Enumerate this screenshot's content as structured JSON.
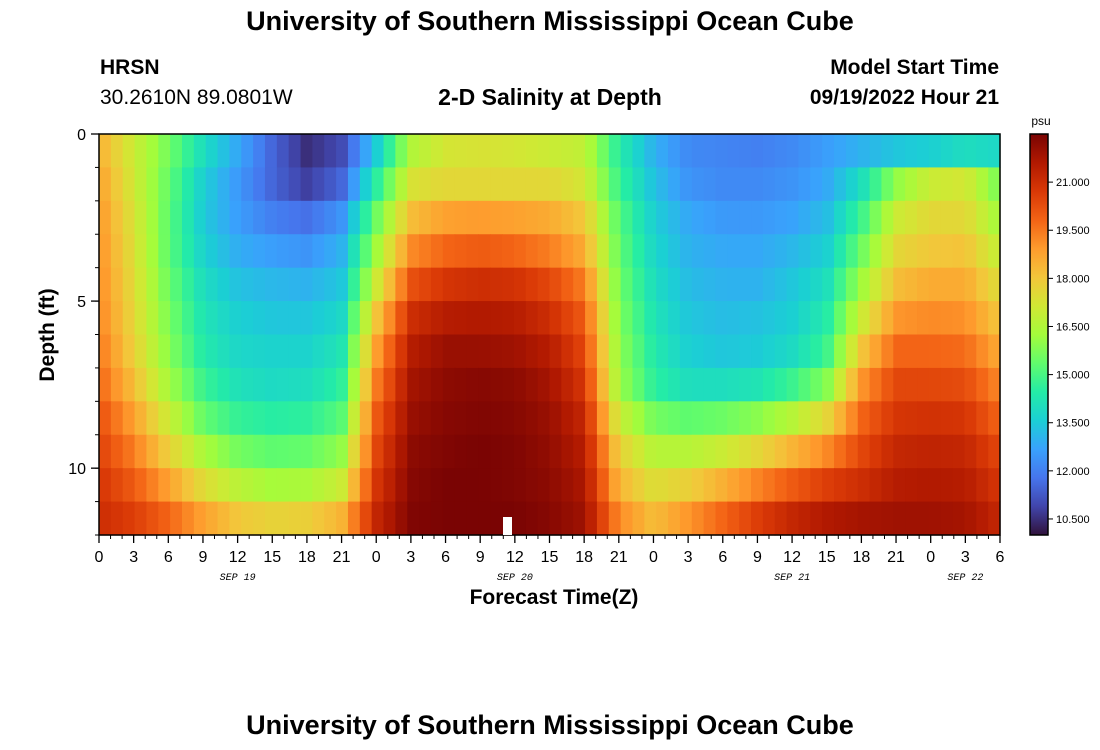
{
  "header": {
    "title": "University of Southern Mississippi Ocean Cube",
    "station": "HRSN",
    "coords": "30.2610N  89.0801W",
    "chart_title": "2-D Salinity at Depth",
    "model_label": "Model Start Time",
    "model_time": "09/19/2022 Hour 21"
  },
  "footer": {
    "title": "University of Southern Mississippi Ocean Cube"
  },
  "colors": {
    "colormap": [
      "#30123b",
      "#4145ab",
      "#4675ed",
      "#39a2fc",
      "#1bcfd4",
      "#24eca6",
      "#61fc6c",
      "#a4fc3b",
      "#d1e834",
      "#f3c63a",
      "#fe9b2d",
      "#f36315",
      "#d93806",
      "#b11901",
      "#7a0403"
    ]
  },
  "chart_data": {
    "type": "heatmap",
    "title": "2-D Salinity at Depth",
    "xlabel": "Forecast Time(Z)",
    "ylabel": "Depth (ft)",
    "colorbar_label": "psu",
    "value_range": [
      10,
      22.5
    ],
    "colorbar_ticks": [
      "10.500",
      "12.000",
      "13.500",
      "15.000",
      "16.500",
      "18.000",
      "19.500",
      "21.000"
    ],
    "colorbar_tick_values": [
      10.5,
      12,
      13.5,
      15,
      16.5,
      18,
      19.5,
      21
    ],
    "x_ticks": [
      "0",
      "3",
      "6",
      "9",
      "12",
      "15",
      "18",
      "21",
      "0",
      "3",
      "6",
      "9",
      "12",
      "15",
      "18",
      "21",
      "0",
      "3",
      "6",
      "9",
      "12",
      "15",
      "18",
      "21",
      "0",
      "3",
      "6"
    ],
    "x_hours_range": [
      0,
      78
    ],
    "date_labels": [
      {
        "text": "SEP 19",
        "hour": 12
      },
      {
        "text": "SEP 20",
        "hour": 36
      },
      {
        "text": "SEP 21",
        "hour": 60
      },
      {
        "text": "SEP 22",
        "hour": 75
      }
    ],
    "y_ticks": [
      "0",
      "5",
      "10"
    ],
    "y_tick_values": [
      0,
      5,
      10
    ],
    "y_range": [
      0,
      12
    ],
    "depth_levels_ft": [
      0.5,
      1.5,
      2.5,
      3.5,
      4.5,
      5.5,
      6.5,
      7.5,
      8.5,
      9.5,
      10.5,
      11.5
    ],
    "time_keys_hours": [
      0,
      3,
      6,
      9,
      12,
      15,
      18,
      21,
      24,
      27,
      30,
      33,
      36,
      39,
      42,
      45,
      48,
      51,
      54,
      57,
      60,
      63,
      66,
      69,
      72,
      75,
      78
    ],
    "salinity_psu": [
      [
        18.5,
        17,
        15.6,
        14,
        12.8,
        11.5,
        10.5,
        11,
        13.5,
        16.5,
        17.2,
        17.3,
        17.2,
        17,
        16.8,
        14.5,
        13,
        12.2,
        12.1,
        12,
        12.2,
        12.6,
        13,
        13.4,
        13.6,
        14,
        13.8
      ],
      [
        18.8,
        17.1,
        15.4,
        13.6,
        12.5,
        11.5,
        10.8,
        11.5,
        14.5,
        17.3,
        17.6,
        17.6,
        17.6,
        17.6,
        17.2,
        14.8,
        13.3,
        12.4,
        12.2,
        12.2,
        12.4,
        12.8,
        14,
        16,
        17,
        17.2,
        15.6
      ],
      [
        19,
        17.3,
        15.3,
        13.5,
        12.6,
        12,
        11.7,
        12.4,
        15.5,
        18.2,
        18.8,
        18.9,
        18.8,
        18.6,
        18,
        15.2,
        13.6,
        12.8,
        12.5,
        12.5,
        12.7,
        13.2,
        14.8,
        17,
        17.6,
        17.6,
        16.2
      ],
      [
        19.1,
        17.4,
        15.3,
        13.7,
        12.9,
        12.6,
        12.4,
        13,
        16.2,
        19.2,
        19.8,
        20,
        19.8,
        19.4,
        18.6,
        15.4,
        13.8,
        13,
        12.8,
        12.8,
        13.1,
        13.6,
        15.5,
        17.6,
        18,
        18.1,
        16.8
      ],
      [
        19.2,
        17.5,
        15.5,
        14,
        13.3,
        13.1,
        13,
        13.4,
        17,
        20.2,
        20.8,
        21,
        20.9,
        20.4,
        19.4,
        15.6,
        14,
        13.2,
        13,
        13,
        13.4,
        14,
        16.2,
        18.2,
        18.6,
        18.6,
        17.4
      ],
      [
        19.3,
        17.6,
        15.7,
        14.2,
        13.6,
        13.4,
        13.4,
        13.8,
        18,
        21,
        21.5,
        21.6,
        21.5,
        21,
        20,
        15.8,
        14.2,
        13.4,
        13.2,
        13.3,
        13.6,
        14.4,
        17,
        19,
        19.2,
        19.1,
        18
      ],
      [
        19.5,
        17.8,
        15.9,
        14.4,
        13.8,
        13.7,
        13.7,
        14.2,
        18.8,
        21.5,
        22,
        22,
        21.9,
        21.5,
        20.4,
        16,
        14.4,
        13.6,
        13.4,
        13.5,
        13.9,
        14.8,
        18,
        19.8,
        19.8,
        19.7,
        18.6
      ],
      [
        19.8,
        18.2,
        16.3,
        14.8,
        14.1,
        13.9,
        14,
        14.6,
        19.4,
        21.8,
        22.2,
        22.3,
        22.2,
        21.8,
        20.8,
        16.2,
        14.6,
        14,
        14,
        14.2,
        14.8,
        15.8,
        19,
        20.4,
        20.4,
        20.3,
        19.2
      ],
      [
        20.2,
        18.8,
        17,
        15.4,
        14.7,
        14.5,
        14.6,
        15.2,
        20,
        22,
        22.3,
        22.4,
        22.3,
        22,
        21.2,
        17,
        15.6,
        15.3,
        15.5,
        15.9,
        16.6,
        17.6,
        19.8,
        20.8,
        20.9,
        20.8,
        19.8
      ],
      [
        20.5,
        19.4,
        17.8,
        16.4,
        15.6,
        15.3,
        15.4,
        16,
        20.4,
        22.2,
        22.4,
        22.5,
        22.4,
        22.1,
        21.5,
        17.8,
        16.6,
        16.6,
        17,
        17.6,
        18.4,
        19.2,
        20.4,
        21.2,
        21.3,
        21.2,
        20.4
      ],
      [
        20.8,
        20,
        18.8,
        17.5,
        16.7,
        16.3,
        16.4,
        17,
        20.8,
        22.3,
        22.5,
        22.5,
        22.4,
        22.2,
        21.7,
        18.4,
        17.4,
        17.8,
        18.5,
        19.3,
        20,
        20.6,
        21,
        21.5,
        21.6,
        21.5,
        20.8
      ],
      [
        21,
        20.6,
        19.8,
        18.8,
        18,
        17.7,
        17.8,
        18.4,
        21.2,
        22.4,
        22.5,
        22.5,
        22.5,
        22.3,
        21.9,
        19.2,
        18.2,
        19,
        19.8,
        20.6,
        21.2,
        21.6,
        21.8,
        21.9,
        21.9,
        21.8,
        21.2
      ]
    ]
  }
}
